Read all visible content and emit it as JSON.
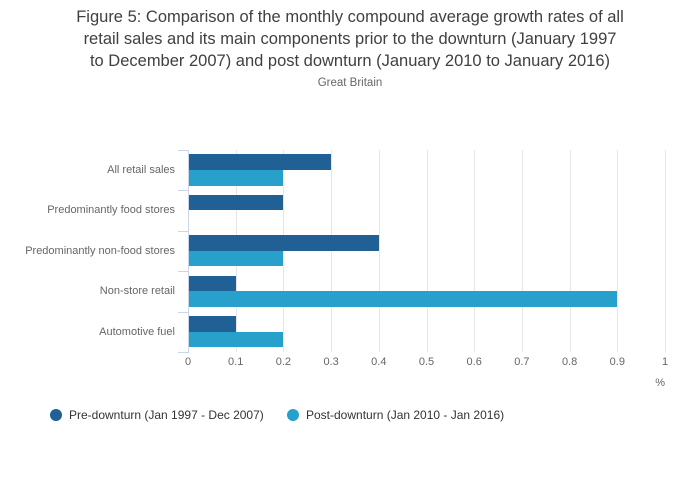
{
  "figure": {
    "title_lines": [
      "Figure 5: Comparison of the monthly compound average growth rates of all",
      "retail sales and its main components prior to the downturn (January 1997",
      "to December 2007) and post downturn (January 2010 to January 2016)"
    ],
    "subtitle": "Great Britain"
  },
  "chart_data": {
    "type": "bar",
    "orientation": "horizontal",
    "title": "Figure 5: Comparison of the monthly compound average growth rates of all retail sales and its main components prior to the downturn (January 1997 to December 2007) and post downturn (January 2010 to January 2016)",
    "subtitle": "Great Britain",
    "categories": [
      "All retail sales",
      "Predominantly food stores",
      "Predominantly non-food stores",
      "Non-store retail",
      "Automotive fuel"
    ],
    "series": [
      {
        "name": "Pre-downturn (Jan 1997 - Dec 2007)",
        "color": "#206095",
        "values": [
          0.3,
          0.2,
          0.4,
          0.1,
          0.1
        ]
      },
      {
        "name": "Post-downturn (Jan 2010 - Jan 2016)",
        "color": "#27a0cc",
        "values": [
          0.2,
          0.0,
          0.2,
          0.9,
          0.2
        ]
      }
    ],
    "xlabel": "%",
    "ylabel": "",
    "xlim": [
      0,
      1
    ],
    "x_ticks": [
      "0",
      "0.1",
      "0.2",
      "0.3",
      "0.4",
      "0.5",
      "0.6",
      "0.7",
      "0.8",
      "0.9",
      "1"
    ],
    "grid": true,
    "legend_position": "bottom-left"
  },
  "colors": {
    "series_pre_downturn": "#206095",
    "series_post_downturn": "#27a0cc",
    "gridline": "#e6e6e6",
    "axis_line": "#ccd6eb",
    "title_text": "#404040",
    "axis_label_text": "#666666",
    "legend_text": "#333333",
    "background": "#ffffff"
  }
}
